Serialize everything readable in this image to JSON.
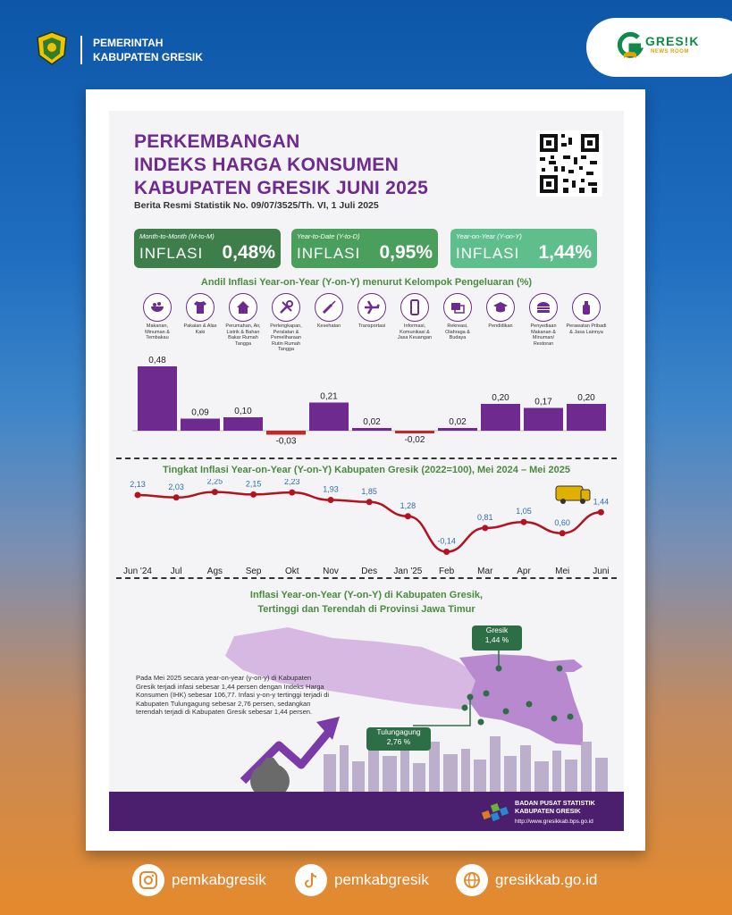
{
  "header": {
    "line1": "PEMERINTAH",
    "line2": "KABUPATEN GRESIK"
  },
  "brand": {
    "name": "GRES!K",
    "sub": "NEWS ROOM"
  },
  "poster": {
    "title_lines": [
      "PERKEMBANGAN",
      "INDEKS HARGA KONSUMEN",
      "KABUPATEN GRESIK JUNI 2025"
    ],
    "subtitle": "Berita Resmi Statistik No. 09/07/3525/Th. VI, 1 Juli 2025",
    "kpis": [
      {
        "label": "Month-to-Month (M-to-M)",
        "word": "INFLASI",
        "value": "0,48%",
        "color": "#3d7e4a"
      },
      {
        "label": "Year-to-Date (Y-to-D)",
        "word": "INFLASI",
        "value": "0,95%",
        "color": "#4a9f5c"
      },
      {
        "label": "Year-on-Year (Y-on-Y)",
        "word": "INFLASI",
        "value": "1,44%",
        "color": "#5fbf8c"
      }
    ],
    "section1_title": "Andil Inflasi Year-on-Year (Y-on-Y) menurut Kelompok Pengeluaran (%)",
    "section2_title": "Tingkat Inflasi Year-on-Year (Y-on-Y) Kabupaten Gresik (2022=100), Mei 2024 – Mei 2025",
    "section3_line1": "Inflasi Year-on-Year (Y-on-Y) di Kabupaten Gresik,",
    "section3_line2": "Tertinggi dan Terendah di Provinsi Jawa Timur",
    "paragraph": "Pada Mei 2025 secara year-on-year (y-on-y) di Kabupaten Gresik terjadi infasi sebesar 1,44 persen dengan Indeks Harga Konsumen (IHK) sebesar 106,77. Infasi y-on-y tertinggi terjadi di Kabupaten Tulungagung sebesar 2,76 persen, sedangkan terendah terjadi di Kabupaten Gresik sebesar 1,44 persen.",
    "callout_gresik": {
      "name": "Gresik",
      "value": "1,44 %"
    },
    "callout_tulungagung": {
      "name": "Tulungagung",
      "value": "2,76 %"
    },
    "bps_line1": "BADAN PUSAT STATISTIK",
    "bps_line2": "KABUPATEN GRESIK",
    "bps_url": "http://www.gresikkab.bps.go.id"
  },
  "chart_data": [
    {
      "type": "bar",
      "title": "Andil Inflasi Year-on-Year (Y-on-Y) menurut Kelompok Pengeluaran (%)",
      "categories": [
        "Makanan, Minuman & Tembakau",
        "Pakaian & Alas Kaki",
        "Perumahan, Air, Listrik & Bahan Bakar Rumah Tangga",
        "Perlengkapan, Peralatan & Pemeliharaan Rutin Rumah Tangga",
        "Kesehatan",
        "Transportasi",
        "Informasi, Komunikasi & Jasa Keuangan",
        "Rekreasi, Olahraga & Budaya",
        "Pendidikan",
        "Penyediaan Makanan & Minuman/ Restoran",
        "Perawatan Pribadi & Jasa Lainnya"
      ],
      "values": [
        0.48,
        0.09,
        0.1,
        -0.03,
        0.21,
        0.02,
        -0.02,
        0.02,
        0.2,
        0.17,
        0.2
      ],
      "labels": [
        "0,48",
        "0,09",
        "0,10",
        "-0,03",
        "0,21",
        "0,02",
        "-0,02",
        "0,02",
        "0,20",
        "0,17",
        "0,20"
      ],
      "icons": [
        "food-bowl-icon",
        "shirt-icon",
        "house-icon",
        "tools-icon",
        "syringe-icon",
        "airplane-icon",
        "phone-icon",
        "cards-icon",
        "graduation-cap-icon",
        "burger-icon",
        "lotion-bottle-icon"
      ],
      "colors": {
        "bar": "#6e2a8e",
        "negative": "#c0282d"
      }
    },
    {
      "type": "line",
      "title": "Tingkat Inflasi Year-on-Year (Y-on-Y) Kabupaten Gresik (2022=100), Mei 2024 – Mei 2025",
      "x": [
        "Jun '24",
        "Jul",
        "Ags",
        "Sep",
        "Okt",
        "Nov",
        "Des",
        "Jan '25",
        "Feb",
        "Mar",
        "Apr",
        "Mei",
        "Juni"
      ],
      "values": [
        2.13,
        2.03,
        2.25,
        2.15,
        2.23,
        1.93,
        1.85,
        1.28,
        -0.14,
        0.81,
        1.05,
        0.6,
        1.44
      ],
      "labels": [
        "2,13",
        "2,03",
        "2,25",
        "2,15",
        "2,23",
        "1,93",
        "1,85",
        "1,28",
        "-0,14",
        "0,81",
        "1,05",
        "0,60",
        "1,44"
      ],
      "colors": {
        "line": "#b3121f",
        "label": "#2c6fb0"
      }
    }
  ],
  "social": [
    {
      "icon": "instagram-icon",
      "handle": "pemkabgresik"
    },
    {
      "icon": "tiktok-icon",
      "handle": "pemkabgresik"
    },
    {
      "icon": "globe-icon",
      "handle": "gresikkab.go.id"
    }
  ]
}
